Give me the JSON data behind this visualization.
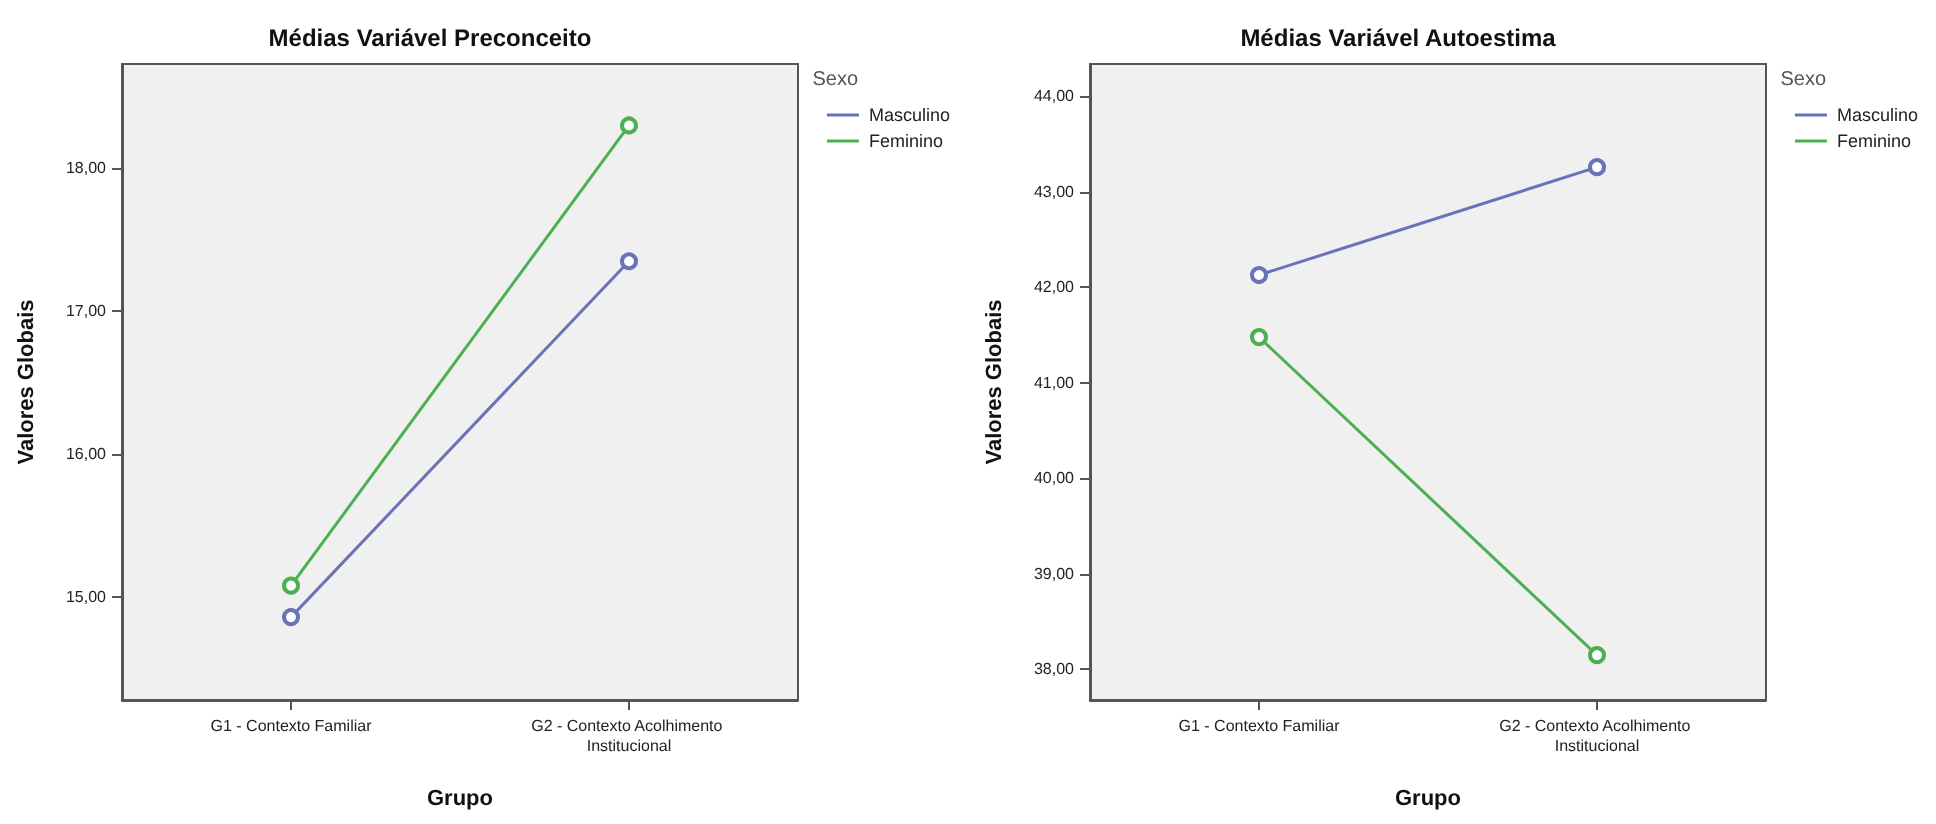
{
  "chart_data": [
    {
      "type": "line",
      "title": "Médias Variável Preconceito",
      "xlabel": "Grupo",
      "ylabel": "Valores Globais",
      "legend_title": "Sexo",
      "categories": [
        "G1 - Contexto Familiar",
        "G2 - Contexto Acolhimento Institucional"
      ],
      "series": [
        {
          "name": "Masculino",
          "color": "#6a72b8",
          "values": [
            14.86,
            17.35
          ]
        },
        {
          "name": "Feminino",
          "color": "#4cb050",
          "values": [
            15.08,
            18.3
          ]
        }
      ],
      "ylim": [
        14.28,
        18.73
      ],
      "yticks": [
        {
          "value": 15,
          "label": "15,00"
        },
        {
          "value": 16,
          "label": "16,00"
        },
        {
          "value": 17,
          "label": "17,00"
        },
        {
          "value": 18,
          "label": "18,00"
        }
      ],
      "grid": false,
      "legend": "top right",
      "marker": "circle",
      "line_style": "solid"
    },
    {
      "type": "line",
      "title": "Médias Variável Autoestima",
      "xlabel": "Grupo",
      "ylabel": "Valores Globais",
      "legend_title": "Sexo",
      "categories": [
        "G1 - Contexto Familiar",
        "G2 - Contexto Acolhimento Institucional"
      ],
      "series": [
        {
          "name": "Masculino",
          "color": "#6a72b8",
          "values": [
            42.13,
            43.26
          ]
        },
        {
          "name": "Feminino",
          "color": "#4cb050",
          "values": [
            41.48,
            38.15
          ]
        }
      ],
      "ylim": [
        37.68,
        44.34
      ],
      "yticks": [
        {
          "value": 38,
          "label": "38,00"
        },
        {
          "value": 39,
          "label": "39,00"
        },
        {
          "value": 40,
          "label": "40,00"
        },
        {
          "value": 41,
          "label": "41,00"
        },
        {
          "value": 42,
          "label": "42,00"
        },
        {
          "value": 43,
          "label": "43,00"
        },
        {
          "value": 44,
          "label": "44,00"
        }
      ],
      "grid": false,
      "legend": "top right",
      "marker": "circle",
      "line_style": "solid"
    }
  ]
}
